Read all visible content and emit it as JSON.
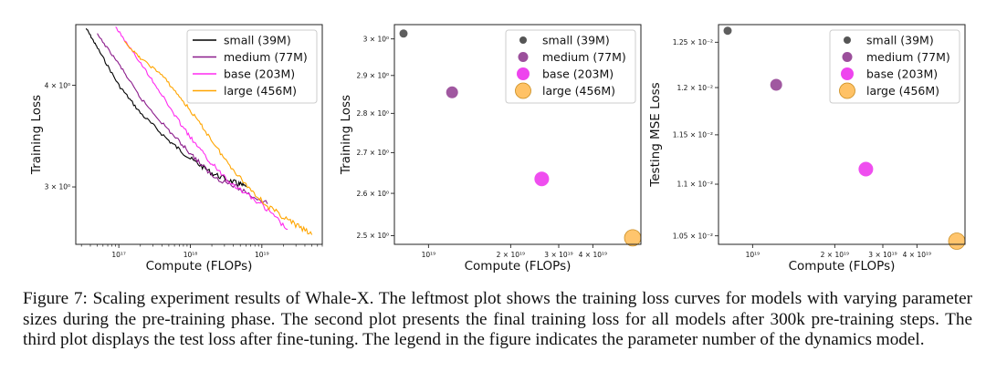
{
  "chart_data": [
    {
      "type": "line",
      "xscale": "log",
      "yscale": "log",
      "xlabel": "Compute (FLOPs)",
      "ylabel": "Training Loss",
      "xlim": [
        2.5e+16,
        7e+19
      ],
      "ylim": [
        2.55,
        4.75
      ],
      "xticks": [
        {
          "v": 1e+17,
          "label": "10¹⁷"
        },
        {
          "v": 1e+18,
          "label": "10¹⁸"
        },
        {
          "v": 1e+19,
          "label": "10¹⁹"
        }
      ],
      "yticks": [
        {
          "v": 4,
          "label": "4 × 10⁰"
        },
        {
          "v": 3,
          "label": "3 × 10⁰"
        }
      ],
      "legend_position": "top-right",
      "series": [
        {
          "name": "small (39M)",
          "color": "#000000",
          "points": [
            [
              3.5e+16,
              4.7
            ],
            [
              5e+16,
              4.45
            ],
            [
              1e+17,
              4.0
            ],
            [
              2e+17,
              3.7
            ],
            [
              5e+17,
              3.42
            ],
            [
              1e+18,
              3.25
            ],
            [
              2e+18,
              3.12
            ],
            [
              4e+18,
              3.04
            ],
            [
              6e+18,
              3.0
            ]
          ]
        },
        {
          "name": "medium (77M)",
          "color": "#8b1c8b",
          "points": [
            [
              5e+16,
              4.62
            ],
            [
              1e+17,
              4.25
            ],
            [
              2e+17,
              3.86
            ],
            [
              5e+17,
              3.52
            ],
            [
              1e+18,
              3.3
            ],
            [
              2e+18,
              3.1
            ],
            [
              5e+18,
              2.98
            ],
            [
              1.2e+19,
              2.86
            ]
          ]
        },
        {
          "name": "base (203M)",
          "color": "#ff2bf0",
          "points": [
            [
              9e+16,
              4.72
            ],
            [
              1.5e+17,
              4.42
            ],
            [
              3e+17,
              4.05
            ],
            [
              6e+17,
              3.68
            ],
            [
              1e+18,
              3.45
            ],
            [
              2e+18,
              3.2
            ],
            [
              4e+18,
              3.02
            ],
            [
              1e+19,
              2.85
            ],
            [
              2.3e+19,
              2.66
            ]
          ]
        },
        {
          "name": "large (456M)",
          "color": "#ffa500",
          "points": [
            [
              1.2e+17,
              4.52
            ],
            [
              2e+17,
              4.32
            ],
            [
              4e+17,
              4.12
            ],
            [
              8e+17,
              3.82
            ],
            [
              1.5e+18,
              3.55
            ],
            [
              3e+18,
              3.25
            ],
            [
              6e+18,
              3.02
            ],
            [
              1.2e+19,
              2.84
            ],
            [
              2.5e+19,
              2.72
            ],
            [
              5e+19,
              2.62
            ]
          ]
        }
      ]
    },
    {
      "type": "scatter",
      "xscale": "log",
      "yscale": "log",
      "xlabel": "Compute (FLOPs)",
      "ylabel": "Training Loss",
      "xlim": [
        7.5e+18,
        6e+19
      ],
      "ylim": [
        2.48,
        3.04
      ],
      "xticks": [
        {
          "v": 1e+19,
          "label": "10¹⁹"
        },
        {
          "v": 2e+19,
          "label": "2 × 10¹⁹"
        },
        {
          "v": 3e+19,
          "label": "3 × 10¹⁹"
        },
        {
          "v": 4e+19,
          "label": "4 × 10¹⁹"
        }
      ],
      "yticks": [
        {
          "v": 3.0,
          "label": "3 × 10⁰"
        },
        {
          "v": 2.9,
          "label": "2.9 × 10⁰"
        },
        {
          "v": 2.8,
          "label": "2.8 × 10⁰"
        },
        {
          "v": 2.7,
          "label": "2.7 × 10⁰"
        },
        {
          "v": 2.6,
          "label": "2.6 × 10⁰"
        },
        {
          "v": 2.5,
          "label": "2.5 × 10⁰"
        }
      ],
      "legend_position": "top-right",
      "series": [
        {
          "name": "small (39M)",
          "color": "#555555",
          "x": 8.1e+18,
          "y": 3.015
        },
        {
          "name": "medium (77M)",
          "color": "#9b4f9b",
          "x": 1.22e+19,
          "y": 2.855
        },
        {
          "name": "base (203M)",
          "color": "#ee44ee",
          "x": 2.6e+19,
          "y": 2.635
        },
        {
          "name": "large (456M)",
          "color": "#ffc266",
          "x": 5.6e+19,
          "y": 2.495
        }
      ]
    },
    {
      "type": "scatter",
      "xscale": "log",
      "yscale": "log",
      "xlabel": "Compute (FLOPs)",
      "ylabel": "Testing MSE Loss",
      "xlim": [
        7.5e+18,
        6e+19
      ],
      "ylim": [
        0.01042,
        0.0127
      ],
      "xticks": [
        {
          "v": 1e+19,
          "label": "10¹⁹"
        },
        {
          "v": 2e+19,
          "label": "2 × 10¹⁹"
        },
        {
          "v": 3e+19,
          "label": "3 × 10¹⁹"
        },
        {
          "v": 4e+19,
          "label": "4 × 10¹⁹"
        }
      ],
      "yticks": [
        {
          "v": 0.0125,
          "label": "1.25 × 10⁻²"
        },
        {
          "v": 0.012,
          "label": "1.2 × 10⁻²"
        },
        {
          "v": 0.0115,
          "label": "1.15 × 10⁻²"
        },
        {
          "v": 0.011,
          "label": "1.1 × 10⁻²"
        },
        {
          "v": 0.0105,
          "label": "1.05 × 10⁻²"
        }
      ],
      "legend_position": "top-right",
      "series": [
        {
          "name": "small (39M)",
          "color": "#555555",
          "x": 8.1e+18,
          "y": 0.01263
        },
        {
          "name": "medium (77M)",
          "color": "#9b4f9b",
          "x": 1.22e+19,
          "y": 0.01203
        },
        {
          "name": "base (203M)",
          "color": "#ee44ee",
          "x": 2.6e+19,
          "y": 0.01115
        },
        {
          "name": "large (456M)",
          "color": "#ffc266",
          "x": 5.6e+19,
          "y": 0.01045
        }
      ]
    }
  ],
  "caption": "Figure 7: Scaling experiment results of Whale-X. The leftmost plot shows the training loss curves for models with varying parameter sizes during the pre-training phase. The second plot presents the final training loss for all models after 300k pre-training steps. The third plot displays the test loss after fine-tuning. The legend in the figure indicates the parameter number of the dynamics model."
}
